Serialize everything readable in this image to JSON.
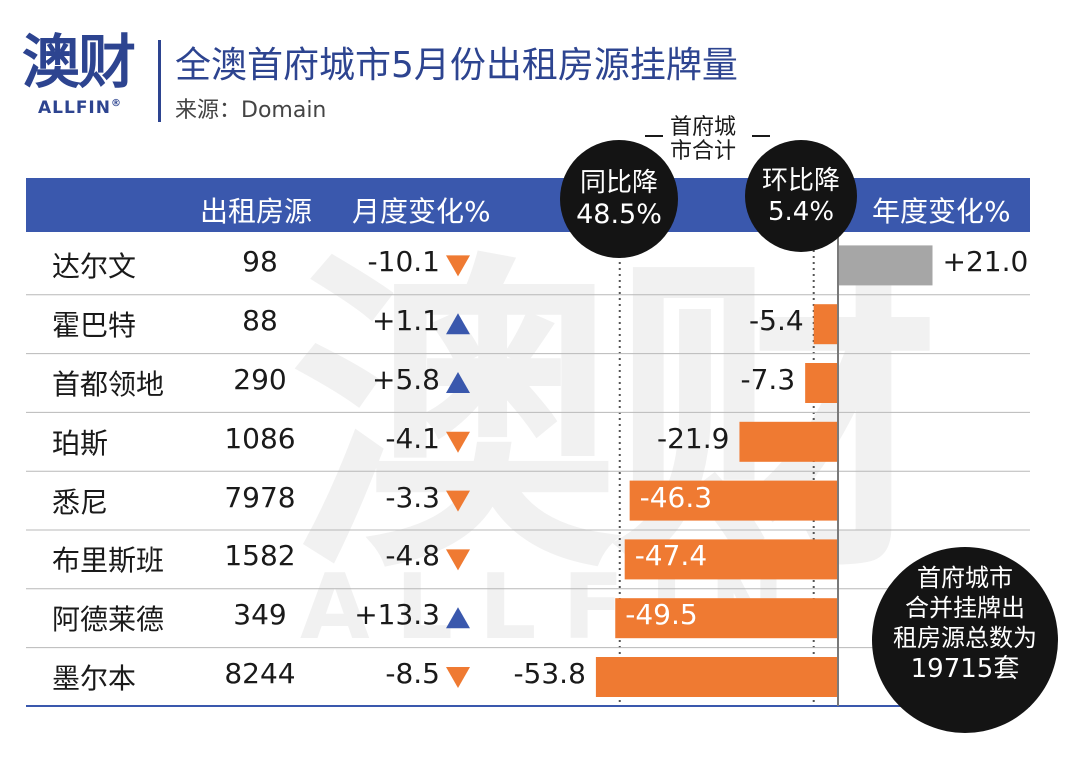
{
  "logo": {
    "cn": "澳财",
    "en": "ALLFIN",
    "reg": "®"
  },
  "title": "全澳首府城市5月份出租房源挂牌量",
  "subtitle": "来源：Domain",
  "watermark": {
    "cn": "澳财",
    "en": "ALLFIN"
  },
  "headers": {
    "listings": "出租房源",
    "monthly": "月度变化%",
    "yearly": "年度变化%"
  },
  "capital_total_label": [
    "首府城",
    "市合计"
  ],
  "yoy_badge": [
    "同比降",
    "48.5%"
  ],
  "mom_badge": [
    "环比降",
    "5.4%"
  ],
  "total_badge": [
    "首府城市",
    "合并挂牌出",
    "租房源总数为",
    "19715套"
  ],
  "colors": {
    "header": "#3a58ad",
    "negative_bar": "#ef7a32",
    "positive_bar": "#a6a6a6",
    "up": "#3a58ad",
    "down": "#ef7a32",
    "badge": "#141414"
  },
  "rows": [
    {
      "city": "达尔文",
      "listings": "98",
      "monthly": "-10.1",
      "monthly_dir": "down",
      "yearly": "+21.0"
    },
    {
      "city": "霍巴特",
      "listings": "88",
      "monthly": "+1.1",
      "monthly_dir": "up",
      "yearly": "-5.4"
    },
    {
      "city": "首都领地",
      "listings": "290",
      "monthly": "+5.8",
      "monthly_dir": "up",
      "yearly": "-7.3"
    },
    {
      "city": "珀斯",
      "listings": "1086",
      "monthly": "-4.1",
      "monthly_dir": "down",
      "yearly": "-21.9"
    },
    {
      "city": "悉尼",
      "listings": "7978",
      "monthly": "-3.3",
      "monthly_dir": "down",
      "yearly": "-46.3"
    },
    {
      "city": "布里斯班",
      "listings": "1582",
      "monthly": "-4.8",
      "monthly_dir": "down",
      "yearly": "-47.4"
    },
    {
      "city": "阿德莱德",
      "listings": "349",
      "monthly": "+13.3",
      "monthly_dir": "up",
      "yearly": "-49.5"
    },
    {
      "city": "墨尔本",
      "listings": "8244",
      "monthly": "-8.5",
      "monthly_dir": "down",
      "yearly": "-53.8"
    }
  ],
  "chart_data": {
    "type": "bar",
    "orientation": "horizontal",
    "categories": [
      "达尔文",
      "霍巴特",
      "首都领地",
      "珀斯",
      "悉尼",
      "布里斯班",
      "阿德莱德",
      "墨尔本"
    ],
    "series": [
      {
        "name": "年度变化%",
        "values": [
          21.0,
          -5.4,
          -7.3,
          -21.9,
          -46.3,
          -47.4,
          -49.5,
          -53.8
        ]
      }
    ],
    "reference_lines": [
      {
        "value": -48.5,
        "style": "dotted"
      },
      {
        "value": -5.4,
        "style": "dotted"
      }
    ],
    "table_columns": {
      "出租房源": [
        98,
        88,
        290,
        1086,
        7978,
        1582,
        349,
        8244
      ],
      "月度变化%": [
        -10.1,
        1.1,
        5.8,
        -4.1,
        -3.3,
        -4.8,
        13.3,
        -8.5
      ]
    },
    "xlim": [
      -60,
      25
    ]
  }
}
